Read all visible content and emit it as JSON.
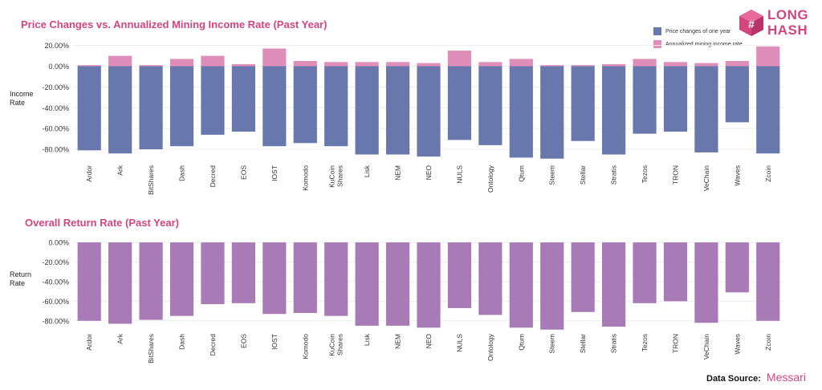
{
  "logo": {
    "line1": "LONG",
    "line2": "HASH"
  },
  "legend": {
    "price_label": "Price changes of one year",
    "income_label": "Annualized mining income rate"
  },
  "colors": {
    "price": "#6878ad",
    "income": "#de8eb8",
    "return": "#a87bb7",
    "title": "#d4457f"
  },
  "source": {
    "label": "Data Source:",
    "value": "Messari"
  },
  "chart_data": [
    {
      "type": "bar",
      "title": "Price Changes vs. Annualized Mining Income Rate (Past Year)",
      "ylabel": [
        "Income",
        "Rate"
      ],
      "ylim": [
        -90,
        22
      ],
      "yticks": [
        20,
        0,
        -20,
        -40,
        -60,
        -80
      ],
      "ytick_labels": [
        "20.00%",
        "0.00%",
        "-20.00%",
        "-40.00%",
        "-60.00%",
        "-80.00%"
      ],
      "categories": [
        "Ardor",
        "Ark",
        "BitShares",
        "Dash",
        "Decred",
        "EOS",
        "IOST",
        "Komodo",
        "KuCoin Shares",
        "Lisk",
        "NEM",
        "NEO",
        "NULS",
        "Ontology",
        "Qtum",
        "Steem",
        "Stellar",
        "Stratis",
        "Tezos",
        "TRON",
        "VeChain",
        "Waves",
        "Zcoin"
      ],
      "series": [
        {
          "name": "Price changes of one year",
          "values": [
            -81,
            -84,
            -80,
            -77,
            -66,
            -63,
            -77,
            -74,
            -77,
            -85,
            -85,
            -87,
            -71,
            -76,
            -88,
            -89,
            -72,
            -85,
            -65,
            -63,
            -83,
            -54,
            -84
          ]
        },
        {
          "name": "Annualized mining income rate",
          "values": [
            1,
            10,
            1,
            7,
            10,
            2,
            17,
            5,
            4,
            4,
            4,
            3,
            15,
            4,
            7,
            1,
            1,
            2,
            7,
            4,
            3,
            5,
            19
          ]
        }
      ]
    },
    {
      "type": "bar",
      "title": "Overall Return Rate (Past Year)",
      "ylabel": [
        "Return",
        "Rate"
      ],
      "ylim": [
        -90,
        5
      ],
      "yticks": [
        0,
        -20,
        -40,
        -60,
        -80
      ],
      "ytick_labels": [
        "0.00%",
        "-20.00%",
        "-40.00%",
        "-60.00%",
        "-80.00%"
      ],
      "categories": [
        "Ardor",
        "Ark",
        "BitShares",
        "Dash",
        "Decred",
        "EOS",
        "IOST",
        "Komodo",
        "KuCoin Shares",
        "Lisk",
        "NEM",
        "NEO",
        "NULS",
        "Ontology",
        "Qtum",
        "Steem",
        "Stellar",
        "Stratis",
        "Tezos",
        "TRON",
        "VeChain",
        "Waves",
        "Zcoin"
      ],
      "series": [
        {
          "values": [
            -80,
            -83,
            -79,
            -75,
            -63,
            -62,
            -73,
            -72,
            -75,
            -85,
            -85,
            -87,
            -67,
            -74,
            -87,
            -89,
            -71,
            -86,
            -62,
            -60,
            -82,
            -51,
            -80
          ]
        }
      ]
    }
  ]
}
